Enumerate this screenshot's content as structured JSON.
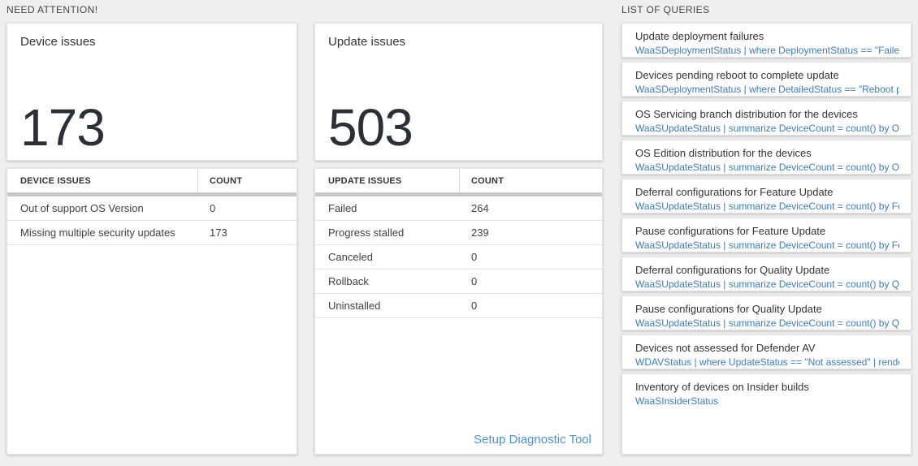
{
  "sections": {
    "need_attention_label": "NEED ATTENTION!",
    "queries_label": "LIST OF QUERIES"
  },
  "device_card": {
    "title": "Device issues",
    "count": "173",
    "table": {
      "headers": [
        "DEVICE ISSUES",
        "COUNT"
      ],
      "rows": [
        [
          "Out of support OS Version",
          "0"
        ],
        [
          "Missing multiple security updates",
          "173"
        ]
      ]
    }
  },
  "update_card": {
    "title": "Update issues",
    "count": "503",
    "table": {
      "headers": [
        "UPDATE ISSUES",
        "COUNT"
      ],
      "rows": [
        [
          "Failed",
          "264"
        ],
        [
          "Progress stalled",
          "239"
        ],
        [
          "Canceled",
          "0"
        ],
        [
          "Rollback",
          "0"
        ],
        [
          "Uninstalled",
          "0"
        ]
      ]
    },
    "link_label": "Setup Diagnostic Tool"
  },
  "queries": [
    {
      "title": "Update deployment failures",
      "query": "WaaSDeploymentStatus | where DeploymentStatus == \"Failed\" |..."
    },
    {
      "title": "Devices pending reboot to complete update",
      "query": "WaaSDeploymentStatus | where DetailedStatus == \"Reboot pend..."
    },
    {
      "title": "OS Servicing branch distribution for the devices",
      "query": "WaaSUpdateStatus | summarize DeviceCount = count() by OSSer..."
    },
    {
      "title": "OS Edition distribution for the devices",
      "query": "WaaSUpdateStatus | summarize DeviceCount = count() by OSEdit..."
    },
    {
      "title": "Deferral configurations for Feature Update",
      "query": "WaaSUpdateStatus | summarize DeviceCount = count() by Featur..."
    },
    {
      "title": "Pause configurations for Feature Update",
      "query": "WaaSUpdateStatus | summarize DeviceCount = count() by Featur..."
    },
    {
      "title": "Deferral configurations for Quality Update",
      "query": "WaaSUpdateStatus | summarize DeviceCount = count() by Qualit..."
    },
    {
      "title": "Pause configurations for Quality Update",
      "query": "WaaSUpdateStatus | summarize DeviceCount = count() by Qualit..."
    },
    {
      "title": "Devices not assessed for Defender AV",
      "query": "WDAVStatus | where UpdateStatus == \"Not assessed\" | render ta..."
    },
    {
      "title": "Inventory of devices on Insider builds",
      "query": "WaaSInsiderStatus"
    }
  ],
  "colors": {
    "page_background": "#efefef",
    "card_background": "#ffffff",
    "big_number": "#2b2f36",
    "code_blue": "#3c7cc0",
    "link_blue": "#4a94d4",
    "thick_bar_gray": "#c8c8c8"
  }
}
